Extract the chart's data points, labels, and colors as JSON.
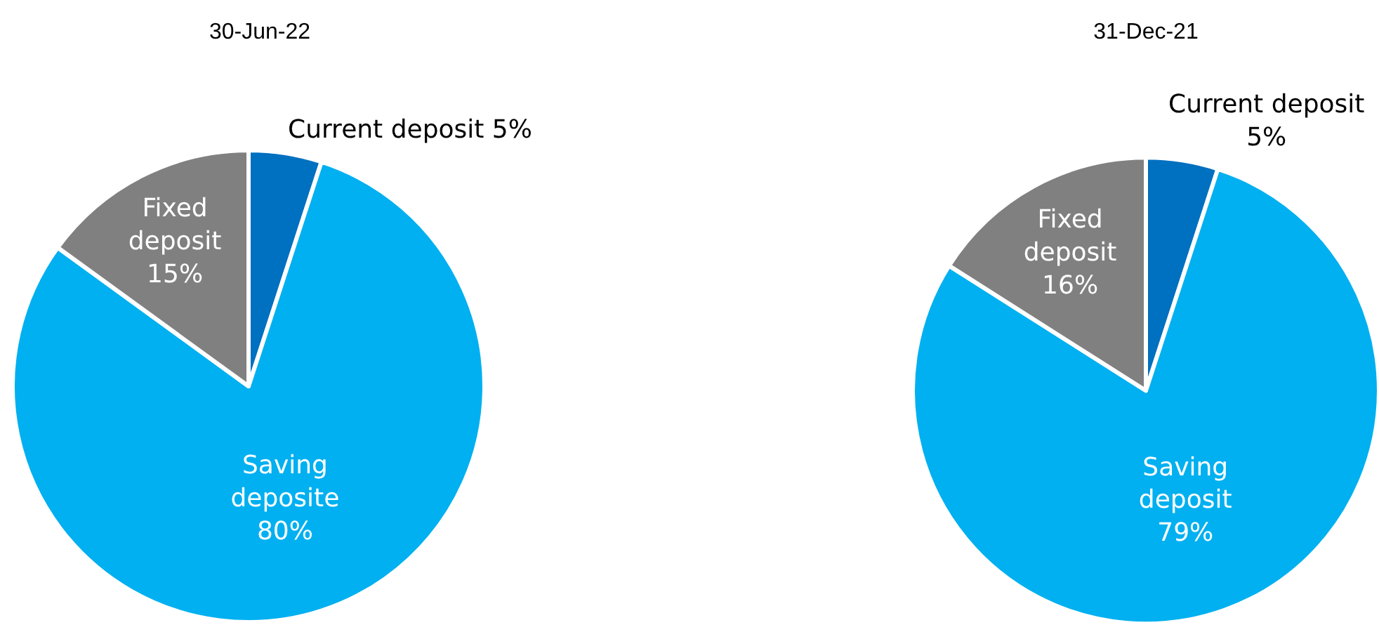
{
  "chart_data": [
    {
      "type": "pie",
      "title": "30-Jun-22",
      "categories": [
        "Current deposit",
        "Saving deposite",
        "Fixed deposit"
      ],
      "values": [
        5,
        80,
        15
      ],
      "value_labels": [
        "5%",
        "80%",
        "15%"
      ],
      "colors": [
        "#0070c0",
        "#00b0f0",
        "#808080"
      ]
    },
    {
      "type": "pie",
      "title": "31-Dec-21",
      "categories": [
        "Current deposit",
        "Saving deposit",
        "Fixed deposit"
      ],
      "values": [
        5,
        79,
        16
      ],
      "value_labels": [
        "5%",
        "79%",
        "16%"
      ],
      "colors": [
        "#0070c0",
        "#00b0f0",
        "#808080"
      ]
    }
  ]
}
